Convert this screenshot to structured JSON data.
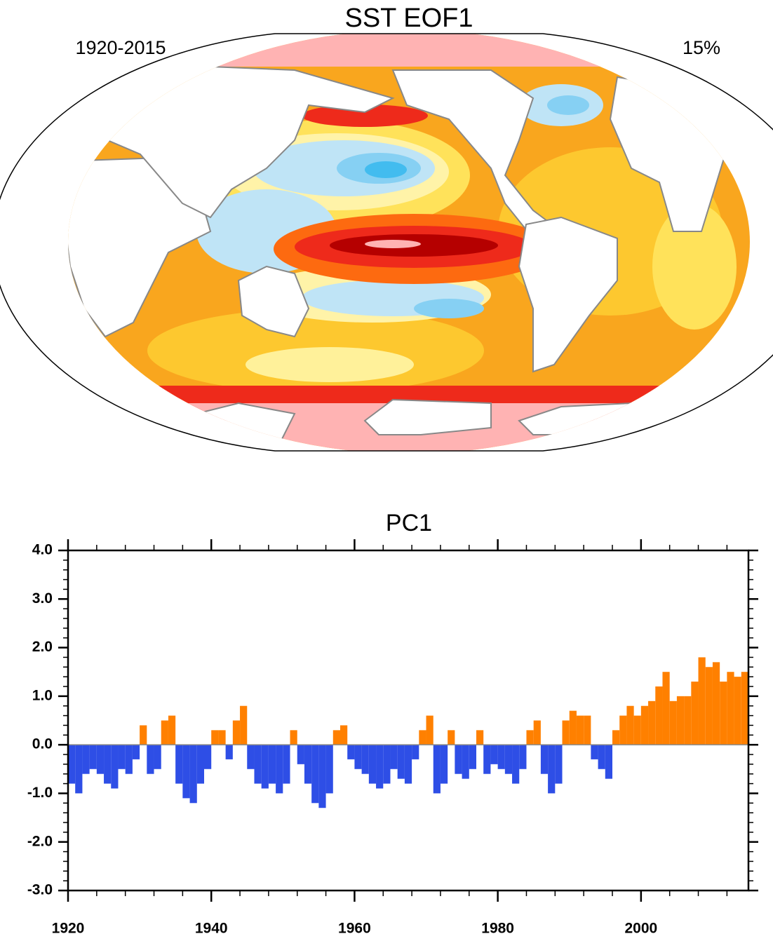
{
  "map": {
    "title": "SST EOF1",
    "period": "1920-2015",
    "variance": "15%"
  },
  "chart_data": {
    "type": "bar",
    "title": "PC1",
    "x": [
      1920,
      1921,
      1922,
      1923,
      1924,
      1925,
      1926,
      1927,
      1928,
      1929,
      1930,
      1931,
      1932,
      1933,
      1934,
      1935,
      1936,
      1937,
      1938,
      1939,
      1940,
      1941,
      1942,
      1943,
      1944,
      1945,
      1946,
      1947,
      1948,
      1949,
      1950,
      1951,
      1952,
      1953,
      1954,
      1955,
      1956,
      1957,
      1958,
      1959,
      1960,
      1961,
      1962,
      1963,
      1964,
      1965,
      1966,
      1967,
      1968,
      1969,
      1970,
      1971,
      1972,
      1973,
      1974,
      1975,
      1976,
      1977,
      1978,
      1979,
      1980,
      1981,
      1982,
      1983,
      1984,
      1985,
      1986,
      1987,
      1988,
      1989,
      1990,
      1991,
      1992,
      1993,
      1994,
      1995,
      1996,
      1997,
      1998,
      1999,
      2000,
      2001,
      2002,
      2003,
      2004,
      2005,
      2006,
      2007,
      2008,
      2009,
      2010,
      2011,
      2012,
      2013,
      2014
    ],
    "values": [
      -0.8,
      -1.0,
      -0.6,
      -0.5,
      -0.6,
      -0.8,
      -0.9,
      -0.5,
      -0.6,
      -0.3,
      0.4,
      -0.6,
      -0.5,
      0.5,
      0.6,
      -0.8,
      -1.1,
      -1.2,
      -0.8,
      -0.5,
      0.3,
      0.3,
      -0.3,
      0.5,
      0.8,
      -0.5,
      -0.8,
      -0.9,
      -0.8,
      -1.0,
      -0.8,
      0.3,
      -0.4,
      -0.8,
      -1.2,
      -1.3,
      -1.0,
      0.3,
      0.4,
      -0.3,
      -0.5,
      -0.6,
      -0.8,
      -0.9,
      -0.8,
      -0.5,
      -0.7,
      -0.8,
      -0.3,
      0.3,
      0.6,
      -1.0,
      -0.8,
      0.3,
      -0.6,
      -0.7,
      -0.5,
      0.3,
      -0.6,
      -0.4,
      -0.5,
      -0.6,
      -0.8,
      -0.5,
      0.3,
      0.5,
      -0.6,
      -1.0,
      -0.8,
      0.5,
      0.7,
      0.6,
      0.6,
      -0.3,
      -0.5,
      -0.7,
      0.3,
      0.6,
      0.8,
      0.6,
      0.8,
      0.9,
      1.2,
      1.5,
      0.9,
      1.0,
      1.0,
      1.3,
      1.8,
      1.6,
      1.7,
      1.3,
      1.5,
      1.4,
      1.5
    ],
    "color_positive": "#ff8000",
    "color_negative": "#2e4ee6",
    "xlim": [
      1920,
      2015
    ],
    "xticks": [
      1920,
      1940,
      1960,
      1980,
      2000
    ],
    "ylim": [
      -3,
      4
    ],
    "yticks": [
      {
        "value": 4,
        "label": "4.0"
      },
      {
        "value": 3,
        "label": "3.0"
      },
      {
        "value": 2,
        "label": "2.0"
      },
      {
        "value": 1,
        "label": "1.0"
      },
      {
        "value": 0,
        "label": "0.0"
      },
      {
        "value": -1,
        "label": "-1.0"
      },
      {
        "value": -2,
        "label": "-2.0"
      },
      {
        "value": -3,
        "label": "-3.0"
      }
    ]
  }
}
